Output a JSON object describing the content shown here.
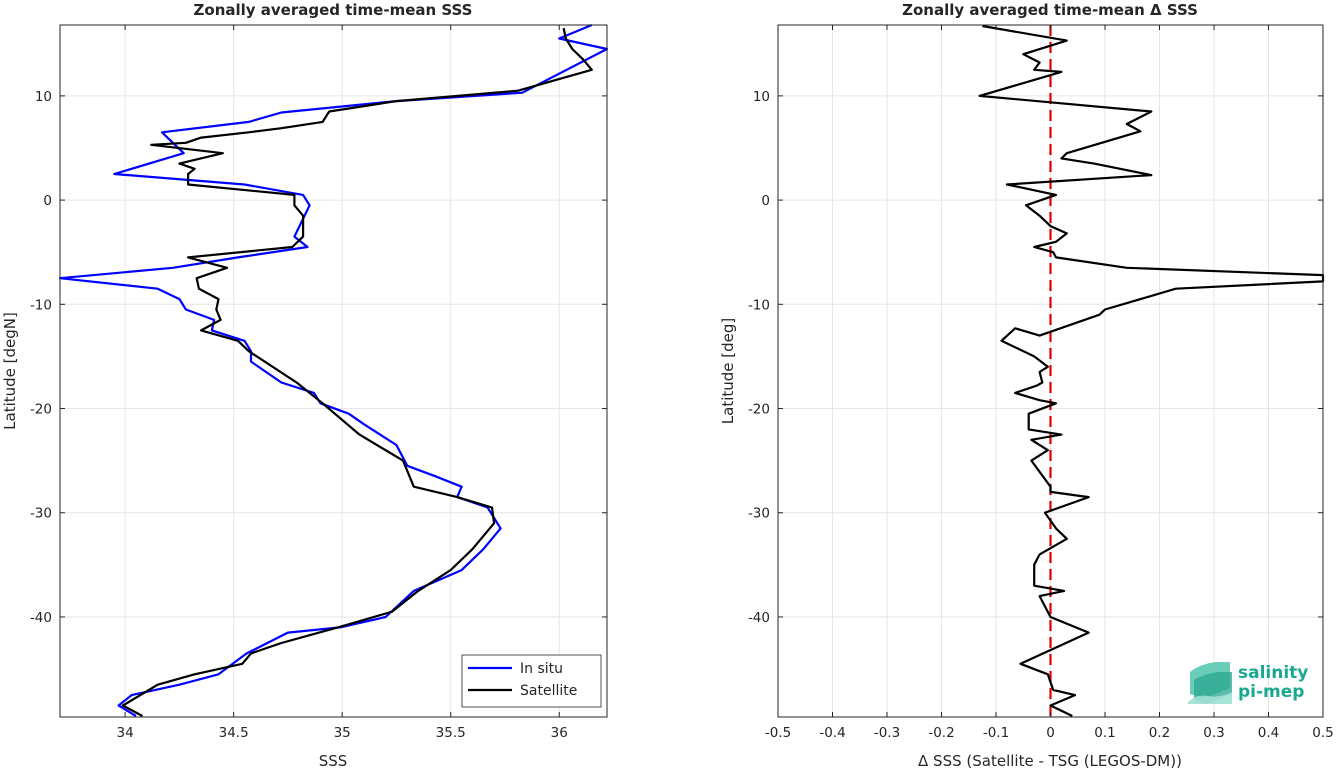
{
  "chart_data": [
    {
      "type": "line",
      "title": "Zonally averaged time-mean SSS",
      "xlabel": "SSS",
      "ylabel": "Latitude [degN]",
      "xlim": [
        33.7,
        36.22
      ],
      "ylim": [
        -49.6,
        16.8
      ],
      "xticks": [
        34,
        34.5,
        35,
        35.5,
        36
      ],
      "xtick_labels": [
        "34",
        "34.5",
        "35",
        "35.5",
        "36"
      ],
      "yticks": [
        -40,
        -30,
        -20,
        -10,
        0,
        10
      ],
      "ytick_labels": [
        "-40",
        "-30",
        "-20",
        "-10",
        "0",
        "10"
      ],
      "grid": true,
      "legend_position": "bottom-right",
      "series": [
        {
          "name": "In situ",
          "color": "#0000ff",
          "x": [
            36.15,
            36.0,
            36.22,
            35.83,
            35.25,
            34.72,
            34.57,
            34.17,
            34.27,
            33.95,
            34.55,
            34.82,
            34.85,
            34.78,
            34.84,
            34.52,
            34.22,
            33.7,
            34.15,
            34.25,
            34.28,
            34.41,
            34.4,
            34.55,
            34.58,
            34.58,
            34.72,
            34.87,
            34.9,
            35.03,
            35.1,
            35.25,
            35.3,
            35.43,
            35.55,
            35.53,
            35.67,
            35.73,
            35.65,
            35.55,
            35.33,
            35.2,
            34.99,
            34.75,
            34.56,
            34.43,
            34.25,
            34.03,
            33.97,
            34.05
          ],
          "y": [
            16.8,
            15.5,
            14.5,
            10.3,
            9.5,
            8.4,
            7.5,
            6.5,
            4.5,
            2.5,
            1.5,
            0.5,
            -0.5,
            -3.5,
            -4.5,
            -5.5,
            -6.5,
            -7.5,
            -8.5,
            -9.5,
            -10.5,
            -11.5,
            -12.5,
            -13.5,
            -14.5,
            -15.5,
            -17.5,
            -18.5,
            -19.5,
            -20.5,
            -21.5,
            -23.5,
            -25.5,
            -26.5,
            -27.5,
            -28.5,
            -29.5,
            -31.5,
            -33.5,
            -35.5,
            -37.5,
            -40.0,
            -41.0,
            -41.5,
            -43.5,
            -45.5,
            -46.5,
            -47.5,
            -48.5,
            -49.5
          ]
        },
        {
          "name": "Satellite",
          "color": "#000000",
          "x": [
            36.02,
            36.03,
            36.06,
            36.11,
            36.15,
            35.81,
            35.25,
            34.94,
            34.91,
            34.72,
            34.57,
            34.35,
            34.28,
            34.12,
            34.45,
            34.25,
            34.32,
            34.29,
            34.29,
            34.78,
            34.78,
            34.82,
            34.82,
            34.77,
            34.29,
            34.47,
            34.33,
            34.34,
            34.43,
            34.42,
            34.44,
            34.35,
            34.52,
            34.57,
            34.79,
            34.91,
            35.08,
            35.28,
            35.33,
            35.53,
            35.69,
            35.7,
            35.6,
            35.5,
            35.35,
            35.23,
            34.98,
            34.72,
            34.58,
            34.54,
            34.32,
            34.15,
            33.99,
            34.08
          ],
          "y": [
            16.5,
            15.5,
            14.5,
            13.5,
            12.5,
            10.5,
            9.5,
            8.5,
            7.5,
            6.9,
            6.5,
            6.0,
            5.5,
            5.3,
            4.5,
            3.5,
            3.0,
            2.5,
            1.5,
            0.5,
            -0.5,
            -1.5,
            -3.5,
            -4.5,
            -5.5,
            -6.5,
            -7.5,
            -8.5,
            -9.5,
            -10.5,
            -11.5,
            -12.5,
            -13.5,
            -14.5,
            -17.5,
            -19.5,
            -22.5,
            -25.0,
            -27.5,
            -28.5,
            -29.5,
            -31.0,
            -33.5,
            -35.5,
            -37.5,
            -39.5,
            -41.0,
            -42.5,
            -43.5,
            -44.5,
            -45.5,
            -46.5,
            -48.5,
            -49.5
          ]
        }
      ]
    },
    {
      "type": "line",
      "title": "Zonally averaged time-mean Δ SSS",
      "xlabel": "Δ SSS (Satellite - TSG (LEGOS-DM))",
      "ylabel": "Latitude [deg]",
      "xlim": [
        -0.5,
        0.5
      ],
      "ylim": [
        -49.6,
        16.8
      ],
      "xticks": [
        -0.5,
        -0.4,
        -0.3,
        -0.2,
        -0.1,
        0,
        0.1,
        0.2,
        0.3,
        0.4,
        0.5
      ],
      "xtick_labels": [
        "-0.5",
        "-0.4",
        "-0.3",
        "-0.2",
        "-0.1",
        "0",
        "0.1",
        "0.2",
        "0.3",
        "0.4",
        "0.5"
      ],
      "yticks": [
        -40,
        -30,
        -20,
        -10,
        0,
        10
      ],
      "ytick_labels": [
        "-40",
        "-30",
        "-20",
        "-10",
        "0",
        "10"
      ],
      "grid": true,
      "reference_line": {
        "x": 0,
        "color": "#e00000",
        "style": "dashed"
      },
      "series": [
        {
          "name": "",
          "color": "#000000",
          "x": [
            -0.125,
            0.03,
            -0.05,
            -0.02,
            -0.03,
            0.02,
            -0.13,
            0.185,
            0.14,
            0.165,
            0.03,
            0.02,
            0.08,
            0.185,
            -0.08,
            0.01,
            -0.045,
            -0.02,
            0.0,
            0.03,
            0.01,
            -0.03,
            0.005,
            0.01,
            0.14,
            0.5,
            0.5,
            0.23,
            0.1,
            0.09,
            -0.02,
            -0.065,
            -0.09,
            -0.03,
            -0.005,
            -0.02,
            -0.015,
            -0.025,
            -0.065,
            -0.02,
            0.01,
            -0.04,
            -0.04,
            0.02,
            -0.035,
            -0.005,
            -0.035,
            0.0,
            0.0,
            0.07,
            -0.01,
            0.01,
            0.03,
            -0.02,
            -0.03,
            -0.03,
            -0.03,
            0.025,
            -0.02,
            0.0,
            0.07,
            -0.055,
            -0.005,
            0.005,
            0.045,
            0.0,
            0.04
          ],
          "y": [
            16.7,
            15.3,
            14.0,
            13.2,
            12.5,
            12.3,
            10.0,
            8.5,
            7.3,
            6.6,
            4.5,
            4.0,
            3.5,
            2.4,
            1.5,
            0.5,
            -0.5,
            -1.5,
            -2.5,
            -3.2,
            -4.0,
            -4.5,
            -5.0,
            -5.5,
            -6.5,
            -7.2,
            -7.8,
            -8.5,
            -10.5,
            -11.0,
            -13.0,
            -12.3,
            -13.5,
            -15.0,
            -16.0,
            -16.5,
            -17.5,
            -17.8,
            -18.5,
            -19.2,
            -19.5,
            -20.5,
            -22.0,
            -22.5,
            -23.0,
            -24.0,
            -25.0,
            -27.5,
            -28.0,
            -28.5,
            -30.0,
            -31.5,
            -32.5,
            -34.0,
            -35.0,
            -36.0,
            -37.0,
            -37.5,
            -38.0,
            -40.0,
            -41.5,
            -44.5,
            -45.5,
            -47.0,
            -47.5,
            -48.5,
            -49.5
          ]
        }
      ]
    }
  ],
  "legend": {
    "entries": [
      "In situ",
      "Satellite"
    ]
  },
  "logo": {
    "line1": "salinity",
    "line2": "pi-mep"
  }
}
